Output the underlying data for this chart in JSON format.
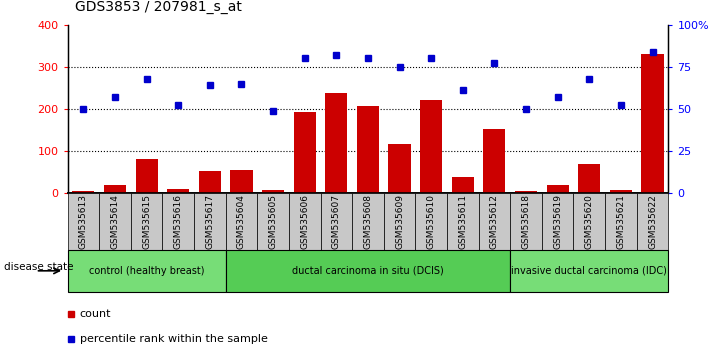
{
  "title": "GDS3853 / 207981_s_at",
  "samples": [
    "GSM535613",
    "GSM535614",
    "GSM535615",
    "GSM535616",
    "GSM535617",
    "GSM535604",
    "GSM535605",
    "GSM535606",
    "GSM535607",
    "GSM535608",
    "GSM535609",
    "GSM535610",
    "GSM535611",
    "GSM535612",
    "GSM535618",
    "GSM535619",
    "GSM535620",
    "GSM535621",
    "GSM535622"
  ],
  "counts": [
    5,
    20,
    80,
    10,
    52,
    55,
    8,
    192,
    237,
    207,
    117,
    220,
    38,
    152,
    5,
    18,
    68,
    7,
    330
  ],
  "percentiles": [
    50,
    57,
    68,
    52,
    64,
    65,
    49,
    80,
    82,
    80,
    75,
    80,
    61,
    77,
    50,
    57,
    68,
    52,
    84
  ],
  "group_defs": [
    [
      0,
      5,
      "#77DD77",
      "control (healthy breast)"
    ],
    [
      5,
      14,
      "#55CC55",
      "ductal carcinoma in situ (DCIS)"
    ],
    [
      14,
      19,
      "#77DD77",
      "invasive ductal carcinoma (IDC)"
    ]
  ],
  "bar_color": "#CC0000",
  "dot_color": "#0000CC",
  "ylim_left": [
    0,
    400
  ],
  "ylim_right": [
    0,
    100
  ],
  "yticks_left": [
    0,
    100,
    200,
    300,
    400
  ],
  "yticks_right": [
    0,
    25,
    50,
    75,
    100
  ],
  "ytick_labels_right": [
    "0",
    "25",
    "50",
    "75",
    "100%"
  ],
  "grid_values": [
    100,
    200,
    300
  ],
  "legend_count_label": "count",
  "legend_percentile_label": "percentile rank within the sample",
  "disease_state_label": "disease state",
  "title_fontsize": 10,
  "tick_label_fontsize": 6.5,
  "ytick_fontsize": 8,
  "legend_fontsize": 8
}
